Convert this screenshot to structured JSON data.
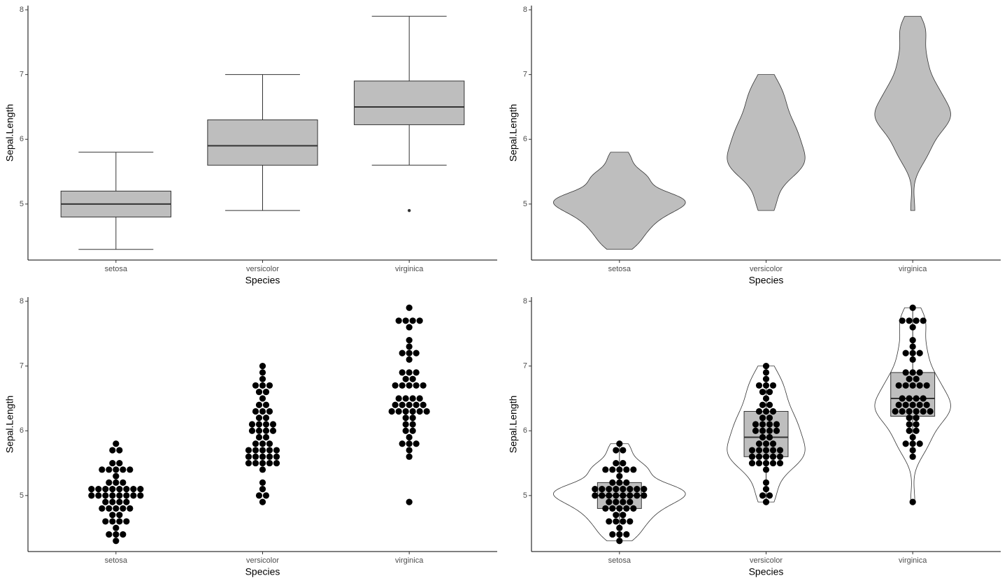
{
  "chart_data": [
    {
      "type": "boxplot",
      "x_label": "Species",
      "y_label": "Sepal.Length",
      "categories": [
        "setosa",
        "versicolor",
        "virginica"
      ],
      "ylim": [
        4.135,
        8.065
      ],
      "yticks": [
        5,
        6,
        7,
        8
      ],
      "fill": "#bebebe",
      "boxes": [
        {
          "min": 4.3,
          "q1": 4.8,
          "median": 5.0,
          "q3": 5.2,
          "max": 5.8,
          "outliers": []
        },
        {
          "min": 4.9,
          "q1": 5.6,
          "median": 5.9,
          "q3": 6.3,
          "max": 7.0,
          "outliers": []
        },
        {
          "min": 5.6,
          "q1": 6.225,
          "median": 6.5,
          "q3": 6.9,
          "max": 7.9,
          "outliers": [
            4.9
          ]
        }
      ]
    },
    {
      "type": "violin",
      "x_label": "Species",
      "y_label": "Sepal.Length",
      "categories": [
        "setosa",
        "versicolor",
        "virginica"
      ],
      "ylim": [
        4.135,
        8.065
      ],
      "yticks": [
        5,
        6,
        7,
        8
      ],
      "fill": "#bebebe",
      "values": [
        [
          5.1,
          4.9,
          4.7,
          4.6,
          5.0,
          5.4,
          4.6,
          5.0,
          4.4,
          4.9,
          5.4,
          4.8,
          4.8,
          4.3,
          5.8,
          5.7,
          5.4,
          5.1,
          5.7,
          5.1,
          5.4,
          5.1,
          4.6,
          5.1,
          4.8,
          5.0,
          5.0,
          5.2,
          5.2,
          4.7,
          4.8,
          5.4,
          5.2,
          5.5,
          4.9,
          5.0,
          5.5,
          4.9,
          4.4,
          5.1,
          5.0,
          4.5,
          4.4,
          5.0,
          5.1,
          4.8,
          5.1,
          4.6,
          5.3,
          5.0
        ],
        [
          7.0,
          6.4,
          6.9,
          5.5,
          6.5,
          5.7,
          6.3,
          4.9,
          6.6,
          5.2,
          5.0,
          5.9,
          6.0,
          6.1,
          5.6,
          6.7,
          5.6,
          5.8,
          6.2,
          5.6,
          5.9,
          6.1,
          6.3,
          6.1,
          6.4,
          6.6,
          6.8,
          6.7,
          6.0,
          5.7,
          5.5,
          5.5,
          5.8,
          6.0,
          5.4,
          6.0,
          6.7,
          6.3,
          5.6,
          5.5,
          5.5,
          6.1,
          5.8,
          5.0,
          5.6,
          5.7,
          5.7,
          6.2,
          5.1,
          5.7
        ],
        [
          6.3,
          5.8,
          7.1,
          6.3,
          6.5,
          7.6,
          4.9,
          7.3,
          6.7,
          7.2,
          6.5,
          6.4,
          6.8,
          5.7,
          5.8,
          6.4,
          6.5,
          7.7,
          7.7,
          6.0,
          6.9,
          5.6,
          7.7,
          6.3,
          6.7,
          7.2,
          6.2,
          6.1,
          6.4,
          7.2,
          7.4,
          7.9,
          6.4,
          6.3,
          6.1,
          7.7,
          6.3,
          6.4,
          6.0,
          6.9,
          6.7,
          6.9,
          5.8,
          6.8,
          6.7,
          6.7,
          6.3,
          6.5,
          6.2,
          5.9
        ]
      ]
    },
    {
      "type": "dotplot",
      "x_label": "Species",
      "y_label": "Sepal.Length",
      "categories": [
        "setosa",
        "versicolor",
        "virginica"
      ],
      "ylim": [
        4.135,
        8.065
      ],
      "yticks": [
        5,
        6,
        7,
        8
      ],
      "dot_color": "#000000",
      "values": [
        [
          5.1,
          4.9,
          4.7,
          4.6,
          5.0,
          5.4,
          4.6,
          5.0,
          4.4,
          4.9,
          5.4,
          4.8,
          4.8,
          4.3,
          5.8,
          5.7,
          5.4,
          5.1,
          5.7,
          5.1,
          5.4,
          5.1,
          4.6,
          5.1,
          4.8,
          5.0,
          5.0,
          5.2,
          5.2,
          4.7,
          4.8,
          5.4,
          5.2,
          5.5,
          4.9,
          5.0,
          5.5,
          4.9,
          4.4,
          5.1,
          5.0,
          4.5,
          4.4,
          5.0,
          5.1,
          4.8,
          5.1,
          4.6,
          5.3,
          5.0
        ],
        [
          7.0,
          6.4,
          6.9,
          5.5,
          6.5,
          5.7,
          6.3,
          4.9,
          6.6,
          5.2,
          5.0,
          5.9,
          6.0,
          6.1,
          5.6,
          6.7,
          5.6,
          5.8,
          6.2,
          5.6,
          5.9,
          6.1,
          6.3,
          6.1,
          6.4,
          6.6,
          6.8,
          6.7,
          6.0,
          5.7,
          5.5,
          5.5,
          5.8,
          6.0,
          5.4,
          6.0,
          6.7,
          6.3,
          5.6,
          5.5,
          5.5,
          6.1,
          5.8,
          5.0,
          5.6,
          5.7,
          5.7,
          6.2,
          5.1,
          5.7
        ],
        [
          6.3,
          5.8,
          7.1,
          6.3,
          6.5,
          7.6,
          4.9,
          7.3,
          6.7,
          7.2,
          6.5,
          6.4,
          6.8,
          5.7,
          5.8,
          6.4,
          6.5,
          7.7,
          7.7,
          6.0,
          6.9,
          5.6,
          7.7,
          6.3,
          6.7,
          7.2,
          6.2,
          6.1,
          6.4,
          7.2,
          7.4,
          7.9,
          6.4,
          6.3,
          6.1,
          7.7,
          6.3,
          6.4,
          6.0,
          6.9,
          6.7,
          6.9,
          5.8,
          6.8,
          6.7,
          6.7,
          6.3,
          6.5,
          6.2,
          5.9
        ]
      ]
    },
    {
      "type": "violin_box_dot",
      "x_label": "Species",
      "y_label": "Sepal.Length",
      "categories": [
        "setosa",
        "versicolor",
        "virginica"
      ],
      "ylim": [
        4.135,
        8.065
      ],
      "yticks": [
        5,
        6,
        7,
        8
      ],
      "fill": "#ffffff",
      "box_fill": "#bebebe",
      "dot_color": "#000000",
      "values": [
        [
          5.1,
          4.9,
          4.7,
          4.6,
          5.0,
          5.4,
          4.6,
          5.0,
          4.4,
          4.9,
          5.4,
          4.8,
          4.8,
          4.3,
          5.8,
          5.7,
          5.4,
          5.1,
          5.7,
          5.1,
          5.4,
          5.1,
          4.6,
          5.1,
          4.8,
          5.0,
          5.0,
          5.2,
          5.2,
          4.7,
          4.8,
          5.4,
          5.2,
          5.5,
          4.9,
          5.0,
          5.5,
          4.9,
          4.4,
          5.1,
          5.0,
          4.5,
          4.4,
          5.0,
          5.1,
          4.8,
          5.1,
          4.6,
          5.3,
          5.0
        ],
        [
          7.0,
          6.4,
          6.9,
          5.5,
          6.5,
          5.7,
          6.3,
          4.9,
          6.6,
          5.2,
          5.0,
          5.9,
          6.0,
          6.1,
          5.6,
          6.7,
          5.6,
          5.8,
          6.2,
          5.6,
          5.9,
          6.1,
          6.3,
          6.1,
          6.4,
          6.6,
          6.8,
          6.7,
          6.0,
          5.7,
          5.5,
          5.5,
          5.8,
          6.0,
          5.4,
          6.0,
          6.7,
          6.3,
          5.6,
          5.5,
          5.5,
          6.1,
          5.8,
          5.0,
          5.6,
          5.7,
          5.7,
          6.2,
          5.1,
          5.7
        ],
        [
          6.3,
          5.8,
          7.1,
          6.3,
          6.5,
          7.6,
          4.9,
          7.3,
          6.7,
          7.2,
          6.5,
          6.4,
          6.8,
          5.7,
          5.8,
          6.4,
          6.5,
          7.7,
          7.7,
          6.0,
          6.9,
          5.6,
          7.7,
          6.3,
          6.7,
          7.2,
          6.2,
          6.1,
          6.4,
          7.2,
          7.4,
          7.9,
          6.4,
          6.3,
          6.1,
          7.7,
          6.3,
          6.4,
          6.0,
          6.9,
          6.7,
          6.9,
          5.8,
          6.8,
          6.7,
          6.7,
          6.3,
          6.5,
          6.2,
          5.9
        ]
      ],
      "boxes": [
        {
          "min": 4.3,
          "q1": 4.8,
          "median": 5.0,
          "q3": 5.2,
          "max": 5.8,
          "outliers": []
        },
        {
          "min": 4.9,
          "q1": 5.6,
          "median": 5.9,
          "q3": 6.3,
          "max": 7.0,
          "outliers": []
        },
        {
          "min": 5.6,
          "q1": 6.225,
          "median": 6.5,
          "q3": 6.9,
          "max": 7.9,
          "outliers": [
            4.9
          ]
        }
      ]
    }
  ]
}
